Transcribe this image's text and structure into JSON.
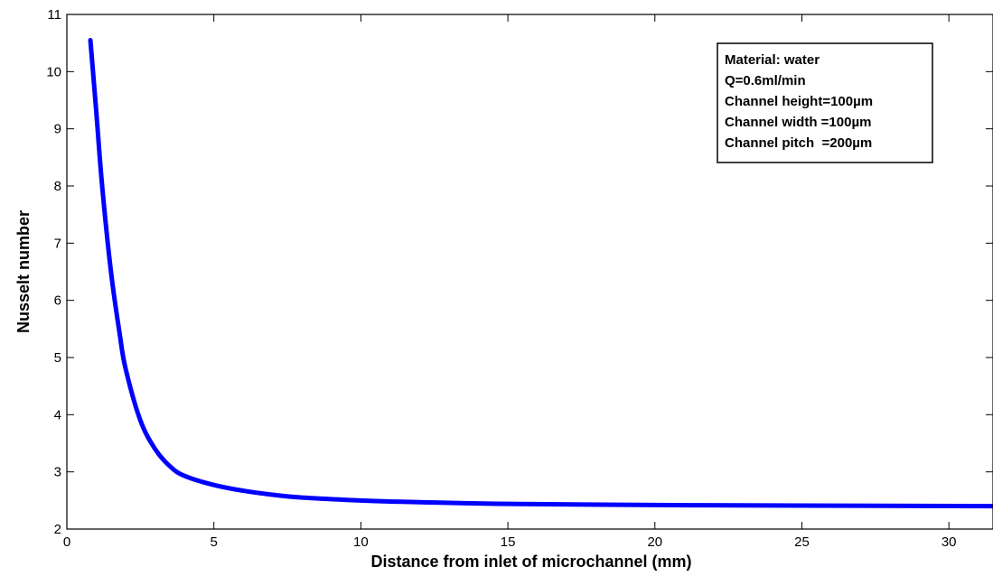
{
  "chart_data": {
    "type": "line",
    "xlabel": "Distance from inlet of microchannel (mm)",
    "ylabel": "Nusselt number",
    "xlim": [
      0,
      31.5
    ],
    "ylim": [
      2,
      11
    ],
    "xticks": [
      0,
      5,
      10,
      15,
      20,
      25,
      30
    ],
    "yticks": [
      2,
      3,
      4,
      5,
      6,
      7,
      8,
      9,
      10,
      11
    ],
    "grid": false,
    "series": [
      {
        "color": "#0000ff",
        "x": [
          0.8,
          1.0,
          1.2,
          1.5,
          1.8,
          2.0,
          2.5,
          3.0,
          3.5,
          4.0,
          5.0,
          6.0,
          7.0,
          8.0,
          10.0,
          12.0,
          15.0,
          20.0,
          25.0,
          31.5
        ],
        "y": [
          10.55,
          9.3,
          8.0,
          6.5,
          5.4,
          4.8,
          3.9,
          3.4,
          3.1,
          2.93,
          2.77,
          2.67,
          2.6,
          2.55,
          2.5,
          2.47,
          2.44,
          2.42,
          2.41,
          2.4
        ]
      }
    ],
    "annotation": {
      "placement": "top-right",
      "lines": [
        "Material: water",
        "Q=0.6ml/min",
        "Channel height=100µm",
        "Channel width =100µm",
        "Channel pitch  =200µm"
      ]
    }
  }
}
